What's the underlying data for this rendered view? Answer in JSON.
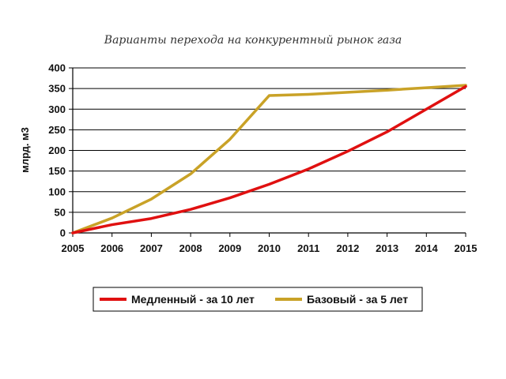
{
  "chart_data": {
    "type": "line",
    "title": "Варианты перехода на конкурентный рынок газа",
    "ylabel": "млрд. м3",
    "xlabel": "",
    "x": [
      "2005",
      "2006",
      "2007",
      "2008",
      "2009",
      "2010",
      "2011",
      "2012",
      "2013",
      "2014",
      "2015"
    ],
    "yticks": [
      "0",
      "50",
      "100",
      "150",
      "200",
      "250",
      "300",
      "350",
      "400"
    ],
    "ylim": [
      0,
      400
    ],
    "grid": "horizontal",
    "legend_position": "bottom",
    "series": [
      {
        "name": "Медленный - за 10 лет",
        "color": "#e01010",
        "values": [
          0,
          20,
          35,
          57,
          85,
          118,
          155,
          198,
          245,
          300,
          355
        ]
      },
      {
        "name": "Базовый - за 5 лет",
        "color": "#c9a227",
        "values": [
          0,
          36,
          82,
          143,
          227,
          333,
          336,
          341,
          346,
          352,
          358
        ]
      }
    ]
  }
}
